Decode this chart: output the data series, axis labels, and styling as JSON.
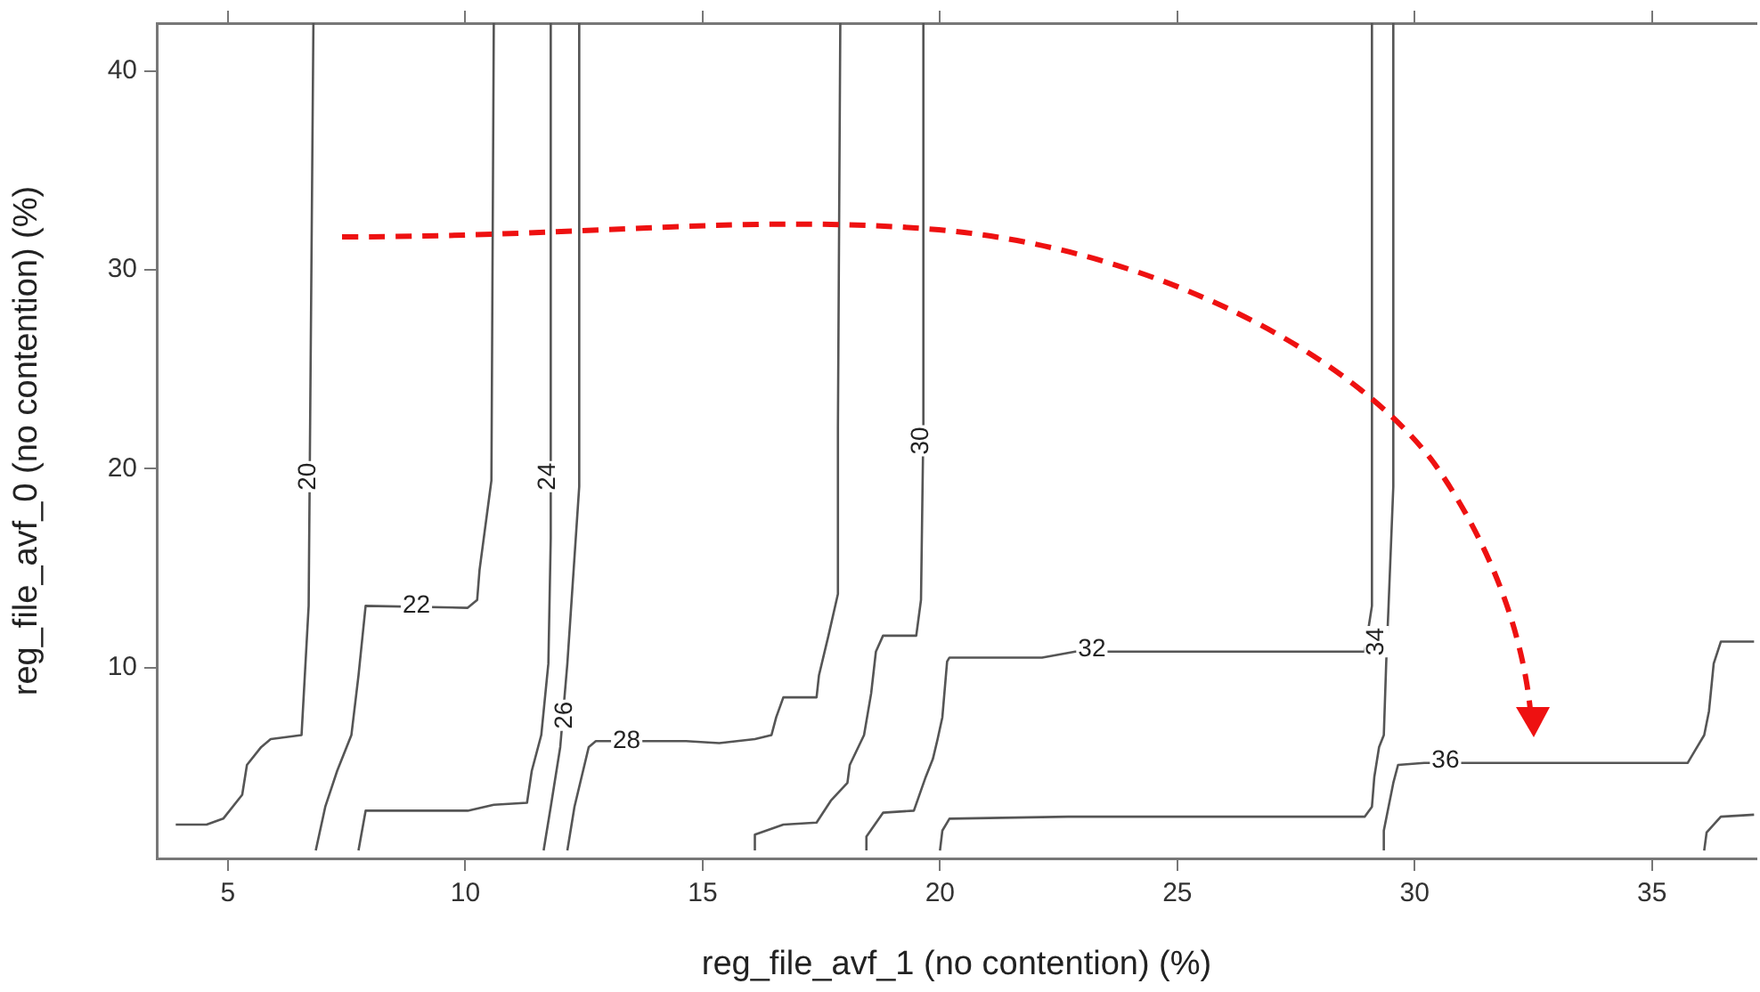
{
  "chart_data": {
    "type": "line",
    "xlabel": "reg_file_avf_1 (no contention) (%)",
    "ylabel": "reg_file_avf_0 (no contention) (%)",
    "xlim": [
      3.5,
      37.2
    ],
    "xticks": [
      5,
      10,
      15,
      20,
      25,
      30,
      35
    ],
    "ylim": [
      0.4,
      42.4
    ],
    "yticks": [
      10,
      20,
      30,
      40
    ],
    "grid": false,
    "legend": false,
    "marker": "none",
    "line_style": "solid",
    "series": [
      {
        "color": "#555555",
        "x": [
          6.8,
          6.7,
          6.55,
          5.9,
          5.7,
          5.4,
          5.3,
          4.9,
          4.55,
          3.9
        ],
        "values": [
          42.4,
          13.1,
          6.6,
          6.4,
          6,
          5.1,
          3.6,
          2.4,
          2.1,
          2.1
        ]
      },
      {
        "color": "#555555",
        "x": [
          6.85,
          7.05,
          7.3,
          7.6,
          7.75,
          7.9,
          10.05,
          10.25,
          10.3,
          10.5,
          10.55,
          10.6
        ],
        "values": [
          0.8,
          3,
          4.8,
          6.6,
          9.6,
          13.1,
          13,
          13.4,
          14.9,
          18.5,
          19.4,
          42.4
        ]
      },
      {
        "color": "#555555",
        "x": [
          7.75,
          7.9,
          10.05,
          10.6,
          11.3,
          11.4,
          11.6,
          11.75,
          11.8,
          11.8
        ],
        "values": [
          0.8,
          2.8,
          2.8,
          3.1,
          3.2,
          4.8,
          6.6,
          10.2,
          16.5,
          42.4
        ]
      },
      {
        "color": "#555555",
        "x": [
          11.65,
          11.8,
          12,
          12.15,
          12.4,
          12.4
        ],
        "values": [
          0.8,
          3,
          6,
          10.2,
          19.1,
          42.4
        ]
      },
      {
        "color": "#555555",
        "x": [
          12.15,
          12.3,
          12.6,
          12.75,
          14.65,
          15.35,
          16.1,
          16.45,
          16.55,
          16.7,
          17.4,
          17.45,
          17.65,
          17.85,
          17.85,
          17.9
        ],
        "values": [
          0.8,
          3,
          6,
          6.3,
          6.3,
          6.2,
          6.4,
          6.6,
          7.5,
          8.5,
          8.5,
          9.6,
          11.6,
          13.7,
          22.1,
          42.4
        ]
      },
      {
        "color": "#555555",
        "x": [
          16.1,
          16.1,
          16.7,
          17.4,
          17.7,
          18.05,
          18.1,
          18.4,
          18.55,
          18.65,
          18.8,
          19.5,
          19.55,
          19.6,
          19.65,
          19.65
        ],
        "values": [
          0.8,
          1.6,
          2.1,
          2.2,
          3.3,
          4.2,
          5.1,
          6.6,
          8.7,
          10.8,
          11.6,
          11.6,
          12.5,
          13.4,
          22.1,
          42.4
        ]
      },
      {
        "color": "#555555",
        "x": [
          18.45,
          18.45,
          18.8,
          19.45,
          19.7,
          19.85,
          19.95,
          20.05,
          20.15,
          20.2,
          22.15,
          22.85,
          25.35,
          28.95,
          29.1,
          29.1
        ],
        "values": [
          0.8,
          1.5,
          2.7,
          2.8,
          4.5,
          5.4,
          6.4,
          7.5,
          10.3,
          10.5,
          10.5,
          10.8,
          10.8,
          10.8,
          13.1,
          42.4
        ]
      },
      {
        "color": "#555555",
        "x": [
          20,
          20.05,
          20.2,
          22.7,
          25.35,
          28.95,
          29.1,
          29.15,
          29.25,
          29.35,
          29.4,
          29.45,
          29.55,
          29.55
        ],
        "values": [
          0.8,
          1.8,
          2.4,
          2.5,
          2.5,
          2.5,
          3,
          4.5,
          6,
          6.6,
          10.2,
          13.1,
          19.1,
          42.4
        ]
      },
      {
        "color": "#555555",
        "x": [
          29.35,
          29.35,
          29.45,
          29.55,
          29.65,
          30.2,
          35.75,
          35.9,
          36.1,
          36.2,
          36.3,
          36.45,
          37.15
        ],
        "values": [
          0.8,
          1.8,
          3,
          4.2,
          5.1,
          5.2,
          5.2,
          5.8,
          6.6,
          7.8,
          10.2,
          11.3,
          11.3
        ]
      },
      {
        "color": "#555555",
        "x": [
          36.1,
          36.15,
          36.45,
          37.15
        ],
        "values": [
          0.8,
          1.7,
          2.5,
          2.6
        ]
      }
    ],
    "annotations": [
      {
        "text": "20",
        "x": 6.7,
        "y": 19.6
      },
      {
        "text": "22",
        "x": 8.97,
        "y": 13.1
      },
      {
        "text": "24",
        "x": 11.75,
        "y": 19.6
      },
      {
        "text": "26",
        "x": 12.1,
        "y": 7.6
      },
      {
        "text": "28",
        "x": 13.4,
        "y": 6.3
      },
      {
        "text": "30",
        "x": 19.6,
        "y": 21.4
      },
      {
        "text": "32",
        "x": 23.2,
        "y": 10.9
      },
      {
        "text": "34",
        "x": 29.2,
        "y": 11.3
      },
      {
        "text": "36",
        "x": 30.65,
        "y": 5.3
      }
    ]
  }
}
